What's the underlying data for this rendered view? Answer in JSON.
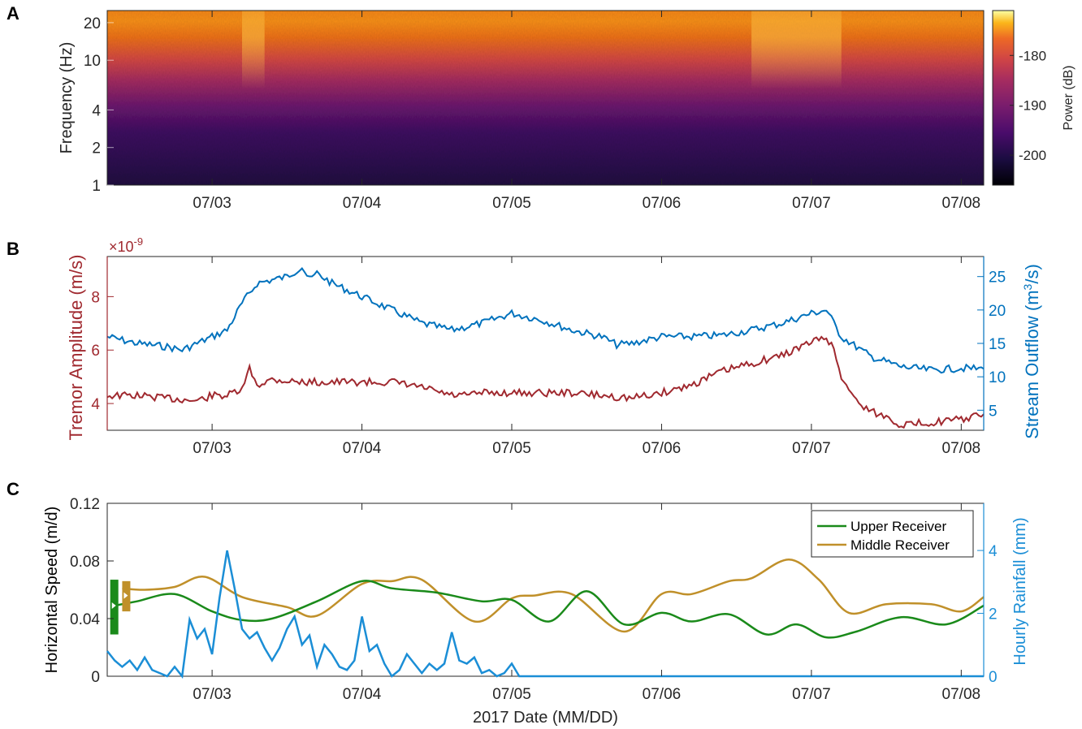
{
  "colors": {
    "tremor": "#a0292f",
    "stream": "#0072bd",
    "upper": "#1a8a1a",
    "middle": "#c0902a",
    "rainfall": "#1b8ed6",
    "axis": "#262626"
  },
  "panels": {
    "a": {
      "letter": "A"
    },
    "b": {
      "letter": "B"
    },
    "c": {
      "letter": "C"
    }
  },
  "x_ticks": [
    "07/03",
    "07/04",
    "07/05",
    "07/06",
    "07/07",
    "07/08"
  ],
  "chart_data": [
    {
      "id": "A",
      "type": "heatmap",
      "ylabel": "Frequency (Hz)",
      "yscale": "log",
      "ylim": [
        1,
        25
      ],
      "yticks": [
        1,
        2,
        4,
        10,
        20
      ],
      "xlim": [
        2.3,
        8.15
      ],
      "xticks": [
        3,
        4,
        5,
        6,
        7,
        8
      ],
      "xticklabels": [
        "07/03",
        "07/04",
        "07/05",
        "07/06",
        "07/07",
        "07/08"
      ],
      "colorbar": {
        "label": "Power (dB)",
        "range": [
          -206,
          -171
        ],
        "ticks": [
          -180,
          -190,
          -200
        ],
        "colormap": "inferno"
      },
      "bright_periods": [
        {
          "from": 3.2,
          "to": 3.35
        },
        {
          "from": 6.6,
          "to": 7.2
        }
      ]
    },
    {
      "id": "B",
      "type": "line",
      "xlim": [
        2.3,
        8.15
      ],
      "xticks": [
        3,
        4,
        5,
        6,
        7,
        8
      ],
      "xticklabels": [
        "07/03",
        "07/04",
        "07/05",
        "07/06",
        "07/07",
        "07/08"
      ],
      "left_axis": {
        "label": "Tremor Amplitude (m/s)",
        "multiplier": "×10",
        "exponent": "-9",
        "ylim": [
          3,
          9.5
        ],
        "ticks": [
          4,
          6,
          8
        ]
      },
      "right_axis": {
        "label_prefix": "Stream Outflow (m",
        "label_sup": "3",
        "label_suffix": "/s)",
        "ylim": [
          2,
          28
        ],
        "ticks": [
          5,
          10,
          15,
          20,
          25
        ]
      },
      "series": [
        {
          "axis": "left",
          "x": [
            2.3,
            2.5,
            2.7,
            2.9,
            3.0,
            3.1,
            3.2,
            3.25,
            3.3,
            3.4,
            3.6,
            3.8,
            4.0,
            4.2,
            4.4,
            4.6,
            4.7,
            4.8,
            5.0,
            5.2,
            5.4,
            5.6,
            5.8,
            6.0,
            6.2,
            6.4,
            6.6,
            6.8,
            7.0,
            7.1,
            7.15,
            7.2,
            7.3,
            7.4,
            7.5,
            7.6,
            7.8,
            8.0,
            8.15
          ],
          "values": [
            4.3,
            4.3,
            4.2,
            4.1,
            4.3,
            4.3,
            4.5,
            5.3,
            4.7,
            4.9,
            4.8,
            4.8,
            4.8,
            4.8,
            4.6,
            4.3,
            4.3,
            4.4,
            4.4,
            4.4,
            4.4,
            4.3,
            4.2,
            4.4,
            4.7,
            5.2,
            5.5,
            5.8,
            6.3,
            6.5,
            6.0,
            5.0,
            4.1,
            3.7,
            3.5,
            3.2,
            3.3,
            3.4,
            3.6
          ]
        },
        {
          "axis": "right",
          "x": [
            2.3,
            2.5,
            2.7,
            2.8,
            3.0,
            3.1,
            3.2,
            3.3,
            3.5,
            3.6,
            3.65,
            3.7,
            3.8,
            4.0,
            4.2,
            4.4,
            4.6,
            4.8,
            5.0,
            5.2,
            5.4,
            5.6,
            5.7,
            5.8,
            6.0,
            6.2,
            6.4,
            6.6,
            6.8,
            7.0,
            7.1,
            7.2,
            7.4,
            7.6,
            7.8,
            8.0,
            8.15
          ],
          "values": [
            16,
            15,
            14.5,
            14,
            16,
            17,
            21,
            24,
            25,
            26.5,
            24.5,
            25.5,
            24,
            22,
            20,
            18,
            17,
            18,
            19.5,
            18.5,
            17,
            16,
            14.8,
            15,
            16,
            16,
            16.2,
            17,
            18,
            19.5,
            20,
            16,
            13,
            11.5,
            11,
            11.3,
            11.2
          ]
        }
      ]
    },
    {
      "id": "C",
      "type": "line",
      "xlabel": "2017 Date (MM/DD)",
      "xlim": [
        2.3,
        8.15
      ],
      "xticks": [
        3,
        4,
        5,
        6,
        7,
        8
      ],
      "xticklabels": [
        "07/03",
        "07/04",
        "07/05",
        "07/06",
        "07/07",
        "07/08"
      ],
      "left_axis": {
        "label": "Horizontal Speed (m/d)",
        "ylim": [
          0,
          0.12
        ],
        "ticks": [
          0,
          0.04,
          0.08,
          0.12
        ],
        "ticklabels": [
          "0",
          "0.04",
          "0.08",
          "0.12"
        ]
      },
      "right_axis": {
        "label": "Hourly Rainfall (mm)",
        "ylim": [
          0,
          5.5
        ],
        "ticks": [
          0,
          2,
          4
        ]
      },
      "legend": {
        "placement": "top-right",
        "entries": [
          "Upper Receiver",
          "Middle Receiver"
        ]
      },
      "series": [
        {
          "name": "Upper Receiver",
          "axis": "left",
          "x": [
            2.35,
            2.5,
            2.75,
            3.0,
            3.2,
            3.4,
            3.7,
            4.0,
            4.2,
            4.5,
            4.8,
            5.0,
            5.25,
            5.5,
            5.75,
            6.0,
            6.2,
            6.45,
            6.7,
            6.9,
            7.1,
            7.3,
            7.6,
            7.9,
            8.15
          ],
          "values": [
            0.049,
            0.052,
            0.057,
            0.045,
            0.039,
            0.04,
            0.052,
            0.066,
            0.061,
            0.058,
            0.052,
            0.053,
            0.038,
            0.059,
            0.036,
            0.044,
            0.038,
            0.043,
            0.029,
            0.036,
            0.027,
            0.031,
            0.041,
            0.036,
            0.049
          ]
        },
        {
          "name": "Middle Receiver",
          "axis": "left",
          "x": [
            2.4,
            2.55,
            2.75,
            2.95,
            3.2,
            3.5,
            3.7,
            4.0,
            4.2,
            4.4,
            4.75,
            5.0,
            5.15,
            5.4,
            5.75,
            6.0,
            6.2,
            6.45,
            6.6,
            6.85,
            7.05,
            7.25,
            7.5,
            7.8,
            8.0,
            8.15
          ],
          "values": [
            0.061,
            0.06,
            0.062,
            0.069,
            0.055,
            0.048,
            0.042,
            0.064,
            0.066,
            0.067,
            0.038,
            0.054,
            0.056,
            0.057,
            0.031,
            0.057,
            0.057,
            0.066,
            0.068,
            0.081,
            0.067,
            0.044,
            0.05,
            0.05,
            0.045,
            0.055
          ]
        },
        {
          "axis": "right",
          "x": [
            2.3,
            2.35,
            2.4,
            2.45,
            2.5,
            2.55,
            2.6,
            2.65,
            2.7,
            2.75,
            2.8,
            2.85,
            2.9,
            2.95,
            3.0,
            3.05,
            3.1,
            3.15,
            3.2,
            3.25,
            3.3,
            3.35,
            3.4,
            3.45,
            3.5,
            3.55,
            3.6,
            3.65,
            3.7,
            3.75,
            3.8,
            3.85,
            3.9,
            3.95,
            4.0,
            4.05,
            4.1,
            4.15,
            4.2,
            4.25,
            4.3,
            4.35,
            4.4,
            4.45,
            4.5,
            4.55,
            4.6,
            4.65,
            4.7,
            4.75,
            4.8,
            4.85,
            4.9,
            4.95,
            5.0,
            5.05,
            5.1,
            5.2,
            5.6,
            6.0,
            6.5,
            7.0,
            7.5,
            8.15
          ],
          "values": [
            0.8,
            0.5,
            0.3,
            0.5,
            0.2,
            0.6,
            0.2,
            0.1,
            0,
            0.3,
            0,
            1.8,
            1.2,
            1.5,
            0.7,
            2.5,
            4,
            2.8,
            1.5,
            1.2,
            1.4,
            0.9,
            0.5,
            0.9,
            1.5,
            1.9,
            1.0,
            1.3,
            0.3,
            1.0,
            0.7,
            0.3,
            0.2,
            0.5,
            1.9,
            0.8,
            1.0,
            0.4,
            0,
            0.2,
            0.7,
            0.4,
            0.1,
            0.4,
            0.2,
            0.4,
            1.4,
            0.5,
            0.4,
            0.6,
            0.1,
            0.2,
            0,
            0.1,
            0.4,
            0,
            0,
            0,
            0,
            0,
            0,
            0,
            0,
            0
          ]
        }
      ]
    }
  ]
}
